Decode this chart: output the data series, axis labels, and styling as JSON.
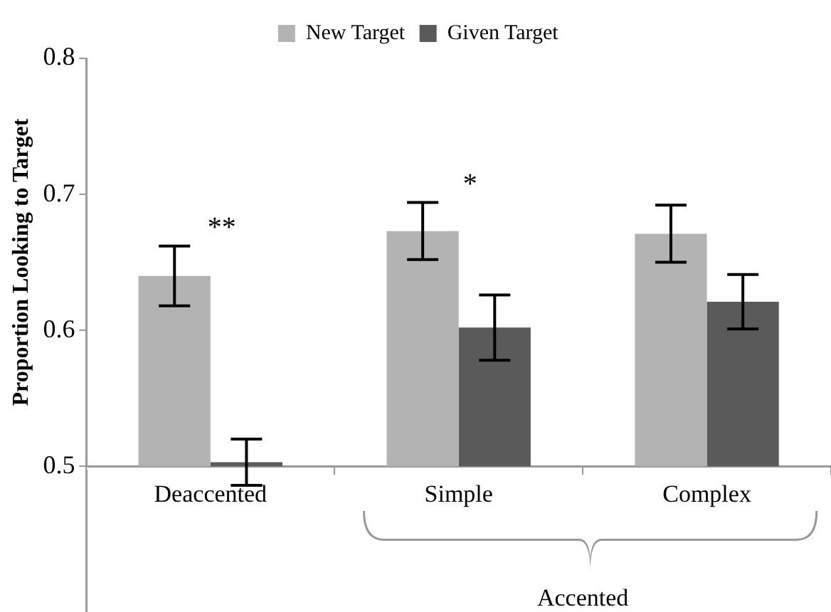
{
  "chart_data": {
    "type": "bar",
    "ylabel": "Proportion Looking to Target",
    "categories": [
      "Deaccented",
      "Simple",
      "Complex"
    ],
    "series": [
      {
        "name": "New Target",
        "color": "#b3b3b3",
        "values": [
          0.64,
          0.673,
          0.671
        ],
        "errors": [
          0.022,
          0.021,
          0.021
        ]
      },
      {
        "name": "Given Target",
        "color": "#5a5a5a",
        "values": [
          0.503,
          0.602,
          0.621
        ],
        "errors": [
          0.017,
          0.024,
          0.02
        ]
      }
    ],
    "ylim": [
      0.5,
      0.8
    ],
    "yticks": [
      0.5,
      0.6,
      0.7,
      0.8
    ],
    "grid": false,
    "legend": "top",
    "annotations": [
      "**",
      "*",
      "Accented"
    ]
  }
}
